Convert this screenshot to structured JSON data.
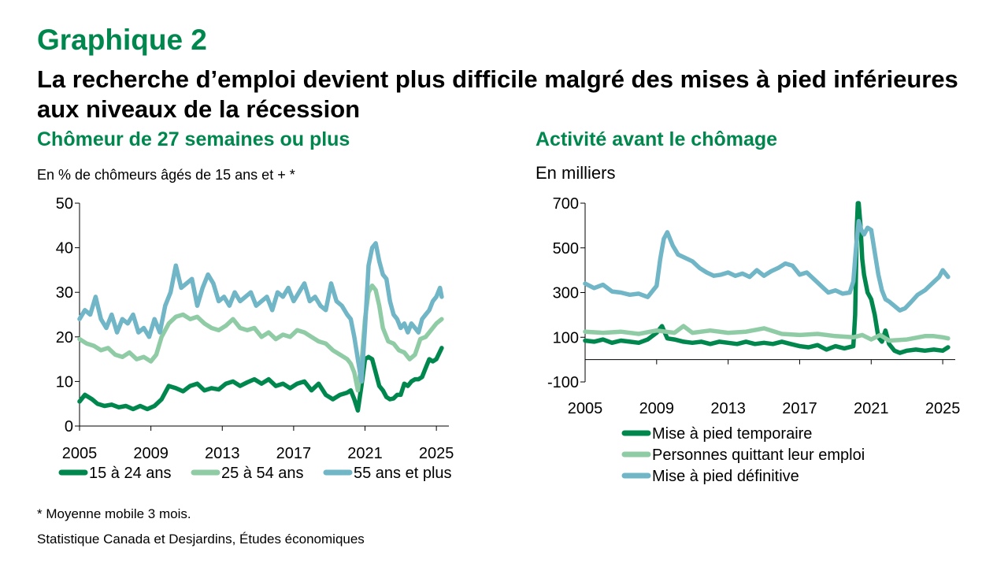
{
  "header": {
    "figure_label": "Graphique 2",
    "title": "La recherche d’emploi devient plus difficile malgré des mises à pied inférieures aux niveaux de la récession"
  },
  "footer": {
    "note": "* Moyenne mobile 3 mois.",
    "source": "Statistique Canada et Desjardins, Études économiques"
  },
  "chart_data": [
    {
      "type": "line",
      "title": "Chômeur de 27 semaines ou plus",
      "ylabel": "En % de chômeurs âgés de 15 ans et + *",
      "xlim": [
        2005,
        2025.7
      ],
      "ylim": [
        0,
        50
      ],
      "xticks": [
        2005,
        2009,
        2013,
        2017,
        2021,
        2025
      ],
      "yticks": [
        0,
        10,
        20,
        30,
        40,
        50
      ],
      "legend_position": "bottom",
      "grid": false,
      "series": [
        {
          "name": "15 à 24 ans",
          "color": "#00874E",
          "x": [
            2005,
            2005.3,
            2005.7,
            2006,
            2006.4,
            2006.8,
            2007.2,
            2007.6,
            2008,
            2008.4,
            2008.8,
            2009.2,
            2009.6,
            2010,
            2010.4,
            2010.8,
            2011.2,
            2011.6,
            2012,
            2012.4,
            2012.8,
            2013.2,
            2013.6,
            2014,
            2014.4,
            2014.8,
            2015.2,
            2015.6,
            2016,
            2016.4,
            2016.8,
            2017.2,
            2017.6,
            2018,
            2018.4,
            2018.8,
            2019.2,
            2019.6,
            2020,
            2020.2,
            2020.4,
            2020.6,
            2020.8,
            2021,
            2021.2,
            2021.4,
            2021.6,
            2021.8,
            2022,
            2022.2,
            2022.4,
            2022.6,
            2022.8,
            2023,
            2023.2,
            2023.4,
            2023.6,
            2023.8,
            2024,
            2024.2,
            2024.4,
            2024.6,
            2024.8,
            2025,
            2025.3
          ],
          "y": [
            5.5,
            7,
            6,
            5,
            4.5,
            4.8,
            4.2,
            4.5,
            3.8,
            4.5,
            3.8,
            4.5,
            6,
            9,
            8.5,
            7.8,
            9,
            9.5,
            8,
            8.5,
            8.2,
            9.5,
            10,
            9,
            9.8,
            10.5,
            9.5,
            10.5,
            9,
            9.5,
            8.5,
            9.5,
            10,
            8,
            9.5,
            7,
            6,
            7,
            7.5,
            8,
            6,
            3.5,
            9,
            15,
            15.5,
            15,
            12,
            9,
            8,
            6.5,
            6,
            6.2,
            7,
            7,
            9.5,
            9,
            10,
            10.5,
            10.5,
            11,
            13,
            15,
            14.5,
            15,
            17.5
          ]
        },
        {
          "name": "25 à 54 ans",
          "color": "#8FCCA5",
          "x": [
            2005,
            2005.4,
            2005.8,
            2006.2,
            2006.6,
            2007,
            2007.4,
            2007.8,
            2008.2,
            2008.6,
            2009,
            2009.3,
            2009.6,
            2010,
            2010.4,
            2010.8,
            2011.2,
            2011.6,
            2012,
            2012.4,
            2012.8,
            2013.2,
            2013.6,
            2014,
            2014.4,
            2014.8,
            2015.2,
            2015.6,
            2016,
            2016.4,
            2016.8,
            2017.2,
            2017.6,
            2018,
            2018.4,
            2018.8,
            2019.2,
            2019.6,
            2020,
            2020.2,
            2020.4,
            2020.6,
            2020.8,
            2021,
            2021.2,
            2021.4,
            2021.6,
            2021.8,
            2022,
            2022.3,
            2022.6,
            2022.9,
            2023.2,
            2023.5,
            2023.8,
            2024.1,
            2024.4,
            2024.7,
            2025,
            2025.3
          ],
          "y": [
            19.5,
            18.5,
            18,
            17,
            17.5,
            16,
            15.5,
            16.5,
            15,
            15.5,
            14.5,
            16,
            20,
            23,
            24.5,
            25,
            24,
            24.5,
            23,
            22,
            21.5,
            22.5,
            24,
            22,
            21.5,
            22,
            20,
            21,
            19.5,
            20.5,
            20,
            21.5,
            21,
            20,
            19,
            18.5,
            17,
            16,
            15,
            14,
            12,
            8,
            14,
            24,
            30,
            31.5,
            30.5,
            27,
            22,
            19,
            18.5,
            17,
            16.5,
            15,
            16,
            19.5,
            20,
            21.5,
            23,
            24
          ]
        },
        {
          "name": "55 ans et plus",
          "color": "#70B6C7",
          "x": [
            2005,
            2005.3,
            2005.6,
            2005.9,
            2006.2,
            2006.5,
            2006.8,
            2007.1,
            2007.4,
            2007.7,
            2008,
            2008.3,
            2008.6,
            2008.9,
            2009.2,
            2009.5,
            2009.8,
            2010.1,
            2010.4,
            2010.7,
            2011,
            2011.3,
            2011.6,
            2011.9,
            2012.2,
            2012.5,
            2012.8,
            2013.1,
            2013.4,
            2013.7,
            2014,
            2014.3,
            2014.6,
            2014.9,
            2015.2,
            2015.5,
            2015.8,
            2016.1,
            2016.4,
            2016.7,
            2017,
            2017.3,
            2017.6,
            2017.9,
            2018.2,
            2018.5,
            2018.8,
            2019.1,
            2019.4,
            2019.7,
            2020,
            2020.2,
            2020.4,
            2020.6,
            2020.8,
            2021,
            2021.2,
            2021.4,
            2021.6,
            2021.8,
            2022,
            2022.2,
            2022.4,
            2022.6,
            2022.8,
            2023,
            2023.2,
            2023.4,
            2023.6,
            2023.8,
            2024,
            2024.2,
            2024.4,
            2024.6,
            2024.8,
            2025,
            2025.2,
            2025.3
          ],
          "y": [
            24,
            26,
            25,
            29,
            24,
            22,
            25,
            21,
            24,
            23,
            25,
            21,
            22,
            20,
            24,
            21,
            27,
            30,
            36,
            31,
            32,
            33,
            27,
            31,
            34,
            32,
            28,
            29,
            27,
            30,
            28,
            29,
            30,
            27,
            28,
            29,
            26,
            30,
            29,
            31,
            28,
            30,
            32,
            28,
            29,
            27,
            26,
            32,
            28,
            27,
            25,
            24,
            20,
            15,
            10,
            22,
            36,
            40,
            41,
            37,
            34,
            33,
            28,
            25,
            24,
            22,
            23,
            21,
            23,
            22,
            21,
            24,
            25,
            26,
            28,
            29,
            31,
            29
          ]
        }
      ]
    },
    {
      "type": "line",
      "title": "Activité avant le chômage",
      "ylabel": "En milliers",
      "xlim": [
        2005,
        2025.7
      ],
      "ylim": [
        -100,
        700
      ],
      "xticks": [
        2005,
        2009,
        2013,
        2017,
        2021,
        2025
      ],
      "yticks": [
        -100,
        100,
        300,
        500,
        700
      ],
      "legend_position": "bottom",
      "grid": false,
      "series": [
        {
          "name": "Mise à pied temporaire",
          "color": "#00874E",
          "x": [
            2005,
            2005.5,
            2006,
            2006.5,
            2007,
            2007.5,
            2008,
            2008.5,
            2009,
            2009.3,
            2009.6,
            2010,
            2010.5,
            2011,
            2011.5,
            2012,
            2012.5,
            2013,
            2013.5,
            2014,
            2014.5,
            2015,
            2015.5,
            2016,
            2016.5,
            2017,
            2017.5,
            2018,
            2018.5,
            2019,
            2019.5,
            2020,
            2020.1,
            2020.2,
            2020.25,
            2020.3,
            2020.4,
            2020.5,
            2020.6,
            2020.8,
            2021,
            2021.2,
            2021.4,
            2021.6,
            2021.8,
            2022,
            2022.3,
            2022.6,
            2023,
            2023.5,
            2024,
            2024.5,
            2025,
            2025.3
          ],
          "y": [
            85,
            80,
            90,
            75,
            85,
            80,
            75,
            90,
            120,
            150,
            95,
            90,
            80,
            75,
            80,
            70,
            80,
            75,
            70,
            80,
            70,
            75,
            70,
            80,
            70,
            60,
            55,
            65,
            45,
            60,
            50,
            60,
            200,
            600,
            700,
            700,
            600,
            450,
            380,
            300,
            270,
            200,
            100,
            80,
            130,
            70,
            40,
            30,
            40,
            45,
            40,
            45,
            40,
            55
          ]
        },
        {
          "name": "Personnes quittant leur emploi",
          "color": "#8FCCA5",
          "x": [
            2005,
            2006,
            2007,
            2008,
            2009,
            2010,
            2010.5,
            2011,
            2012,
            2013,
            2014,
            2015,
            2016,
            2017,
            2018,
            2019,
            2020,
            2020.5,
            2021,
            2021.5,
            2022,
            2023,
            2024,
            2024.5,
            2025,
            2025.3
          ],
          "y": [
            125,
            120,
            125,
            115,
            130,
            120,
            150,
            120,
            130,
            120,
            125,
            140,
            115,
            110,
            115,
            105,
            100,
            110,
            90,
            110,
            85,
            90,
            105,
            105,
            100,
            95
          ]
        },
        {
          "name": "Mise à pied définitive",
          "color": "#70B6C7",
          "x": [
            2005,
            2005.5,
            2006,
            2006.5,
            2007,
            2007.5,
            2008,
            2008.5,
            2009,
            2009.2,
            2009.4,
            2009.6,
            2009.9,
            2010.2,
            2010.6,
            2011,
            2011.4,
            2011.8,
            2012.2,
            2012.6,
            2013,
            2013.4,
            2013.8,
            2014.2,
            2014.6,
            2015,
            2015.4,
            2015.8,
            2016.2,
            2016.6,
            2017,
            2017.4,
            2017.8,
            2018.2,
            2018.6,
            2019,
            2019.4,
            2019.8,
            2020,
            2020.15,
            2020.3,
            2020.45,
            2020.6,
            2020.8,
            2021,
            2021.2,
            2021.4,
            2021.6,
            2021.8,
            2022,
            2022.3,
            2022.6,
            2022.9,
            2023.2,
            2023.6,
            2024,
            2024.4,
            2024.8,
            2025,
            2025.3
          ],
          "y": [
            340,
            320,
            335,
            305,
            300,
            290,
            295,
            280,
            330,
            450,
            540,
            570,
            510,
            470,
            455,
            440,
            410,
            390,
            375,
            380,
            390,
            375,
            385,
            370,
            400,
            375,
            395,
            410,
            430,
            420,
            380,
            390,
            360,
            330,
            300,
            310,
            295,
            300,
            350,
            500,
            620,
            580,
            560,
            590,
            580,
            480,
            380,
            310,
            270,
            260,
            240,
            220,
            230,
            255,
            290,
            310,
            340,
            370,
            400,
            370
          ]
        }
      ]
    }
  ]
}
